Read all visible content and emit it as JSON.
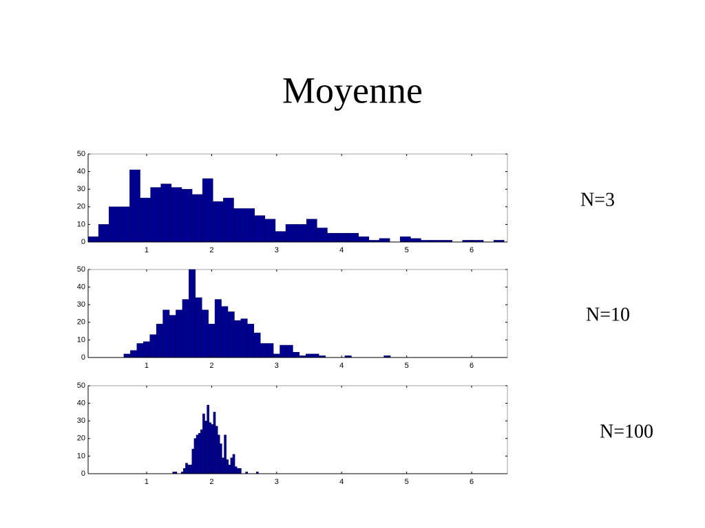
{
  "title": "Moyenne",
  "chart_data": [
    {
      "type": "histogram",
      "annotation": "N=3",
      "color": "#00008f",
      "xlim": [
        0.1,
        6.55
      ],
      "ylim": [
        0,
        50
      ],
      "xticks": [
        1,
        2,
        3,
        4,
        5,
        6
      ],
      "yticks": [
        0,
        10,
        20,
        30,
        40,
        50
      ],
      "bins": [
        0.1,
        0.26,
        0.42,
        0.58,
        0.74,
        0.9,
        1.06,
        1.22,
        1.38,
        1.54,
        1.7,
        1.86,
        2.02,
        2.18,
        2.34,
        2.5,
        2.66,
        2.82,
        2.98,
        3.14,
        3.3,
        3.46,
        3.62,
        3.78,
        3.94,
        4.1,
        4.26,
        4.42,
        4.58,
        4.74,
        4.9,
        5.06,
        5.22,
        5.38,
        5.54,
        5.7,
        5.86,
        6.02,
        6.18,
        6.34,
        6.5
      ],
      "values": [
        3,
        10,
        20,
        20,
        41,
        25,
        31,
        33,
        31,
        30,
        27,
        36,
        23,
        25,
        19,
        19,
        15,
        13,
        6,
        10,
        10,
        13,
        8,
        5,
        5,
        5,
        3,
        1,
        2,
        0,
        3,
        2,
        1,
        1,
        1,
        0,
        1,
        1,
        0,
        1
      ]
    },
    {
      "type": "histogram",
      "annotation": "N=10",
      "color": "#00008f",
      "xlim": [
        0.1,
        6.55
      ],
      "ylim": [
        0,
        50
      ],
      "xticks": [
        1,
        2,
        3,
        4,
        5,
        6
      ],
      "yticks": [
        0,
        10,
        20,
        30,
        40,
        50
      ],
      "bins": [
        0.65,
        0.75,
        0.85,
        0.95,
        1.05,
        1.15,
        1.25,
        1.35,
        1.45,
        1.55,
        1.65,
        1.75,
        1.85,
        1.95,
        2.05,
        2.15,
        2.25,
        2.35,
        2.45,
        2.55,
        2.65,
        2.75,
        2.85,
        2.95,
        3.05,
        3.15,
        3.25,
        3.35,
        3.45,
        3.55,
        3.65,
        3.75,
        3.85,
        3.95,
        4.05,
        4.15,
        4.25,
        4.35,
        4.45,
        4.55,
        4.65,
        4.75
      ],
      "values": [
        2,
        4,
        8,
        9,
        13,
        19,
        27,
        24,
        27,
        33,
        50,
        34,
        27,
        19,
        33,
        29,
        26,
        21,
        22,
        19,
        14,
        8,
        8,
        2,
        7,
        7,
        3,
        1,
        2,
        2,
        1,
        0,
        0,
        0,
        1,
        0,
        0,
        0,
        0,
        0,
        1
      ]
    },
    {
      "type": "histogram",
      "annotation": "N=100",
      "color": "#00008f",
      "xlim": [
        0.1,
        6.55
      ],
      "ylim": [
        0,
        50
      ],
      "xticks": [
        1,
        2,
        3,
        4,
        5,
        6
      ],
      "yticks": [
        0,
        10,
        20,
        30,
        40,
        50
      ],
      "bins": [
        1.4,
        1.433,
        1.466,
        1.499,
        1.532,
        1.565,
        1.598,
        1.631,
        1.664,
        1.697,
        1.73,
        1.763,
        1.796,
        1.829,
        1.862,
        1.895,
        1.928,
        1.961,
        1.994,
        2.027,
        2.06,
        2.093,
        2.126,
        2.159,
        2.192,
        2.225,
        2.258,
        2.291,
        2.324,
        2.357,
        2.39,
        2.423,
        2.456,
        2.489,
        2.522,
        2.555,
        2.588,
        2.621,
        2.654,
        2.687,
        2.72
      ],
      "values": [
        1,
        1,
        0,
        0,
        1,
        3,
        6,
        5,
        5,
        14,
        20,
        22,
        23,
        25,
        34,
        30,
        39,
        29,
        28,
        35,
        27,
        22,
        17,
        9,
        22,
        8,
        5,
        9,
        11,
        4,
        3,
        3,
        0,
        0,
        1,
        0,
        0,
        0,
        0,
        1
      ]
    }
  ]
}
